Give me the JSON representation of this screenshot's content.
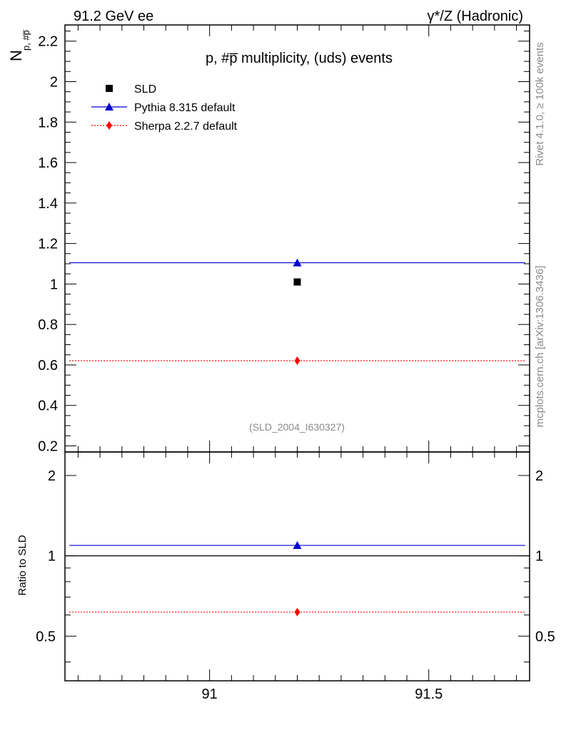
{
  "header": {
    "left": "91.2 GeV ee",
    "right": "γ*/Z (Hadronic)"
  },
  "side_labels": {
    "rivet": "Rivet 4.1.0, ≥ 100k events",
    "mcplots": "mcplots.cern.ch [arXiv:1306.3436]"
  },
  "chart_data": {
    "type": "scatter",
    "title": "p, #p̅ multiplicity, (uds) events",
    "analysis_id": "(SLD_2004_I630327)",
    "ylabel_main": "N",
    "ylabel_sub": "p, #p̅",
    "ylabel_ratio": "Ratio to SLD",
    "xlim": [
      90.67,
      91.73
    ],
    "ylim": [
      0.17,
      2.28
    ],
    "ratio_ylim": [
      0.34,
      2.45
    ],
    "x_ticks": [
      91,
      91.5
    ],
    "x_tick_labels": [
      "91",
      "91.5"
    ],
    "y_ticks": [
      0.2,
      0.4,
      0.6,
      0.8,
      1,
      1.2,
      1.4,
      1.6,
      1.8,
      2,
      2.2
    ],
    "y_tick_labels": [
      "0.2",
      "0.4",
      "0.6",
      "0.8",
      "1",
      "1.2",
      "1.4",
      "1.6",
      "1.8",
      "2",
      "2.2"
    ],
    "ratio_ticks": [
      0.5,
      1,
      2
    ],
    "ratio_tick_labels": [
      "0.5",
      "1",
      "2"
    ],
    "series": [
      {
        "name": "SLD",
        "marker": "square",
        "color": "#000000",
        "line": "none",
        "x": 91.2,
        "value": 1.01,
        "x_range": null,
        "ratio": 1.0
      },
      {
        "name": "Pythia 8.315 default",
        "marker": "triangle",
        "color": "#0000cc",
        "line": "solid",
        "x": 91.2,
        "value": 1.105,
        "x_range": [
          90.68,
          91.72
        ],
        "ratio": 1.094
      },
      {
        "name": "Sherpa 2.2.7 default",
        "marker": "diamond",
        "color": "#ff0000",
        "line": "dotted",
        "x": 91.2,
        "value": 0.621,
        "x_range": [
          90.68,
          91.72
        ],
        "ratio": 0.615
      }
    ]
  }
}
